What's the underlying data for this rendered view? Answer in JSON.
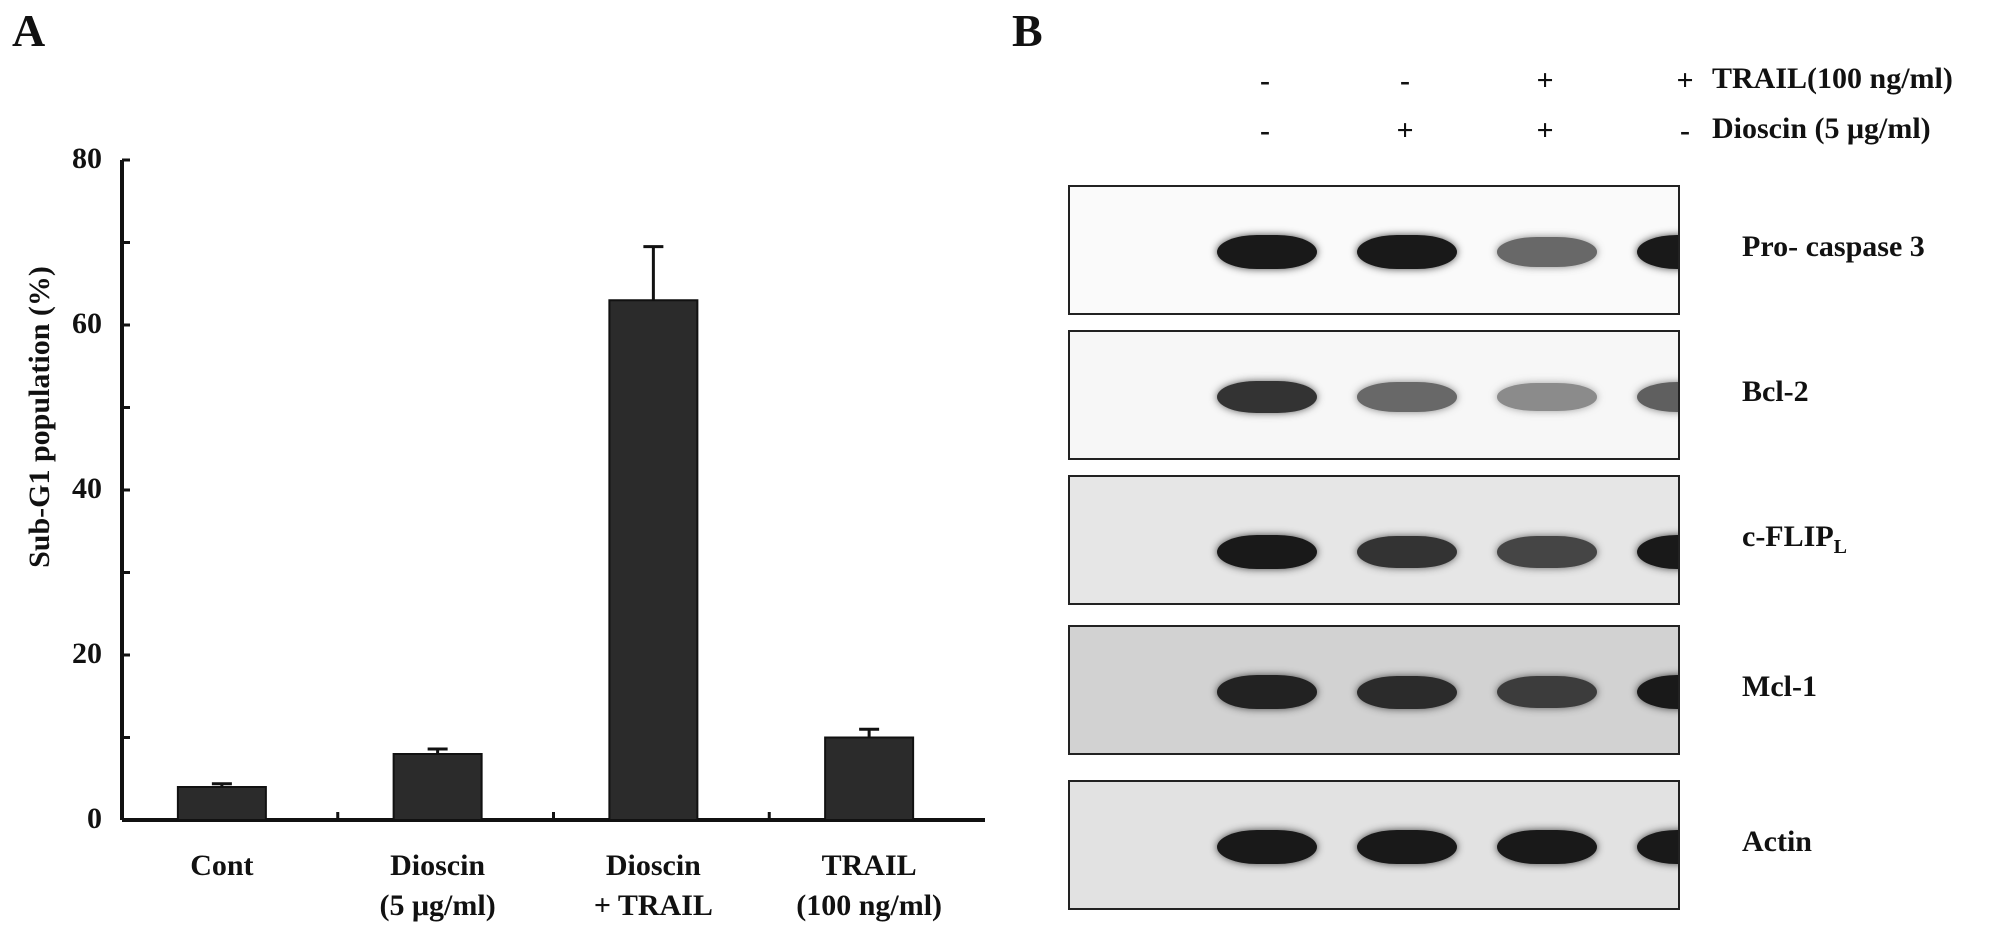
{
  "panels": {
    "a_letter": "A",
    "b_letter": "B"
  },
  "chart_data": {
    "type": "bar",
    "ylabel": "Sub-G1 population (%)",
    "xlabel": "",
    "ylim": [
      0,
      80
    ],
    "yticks": [
      0,
      20,
      40,
      60,
      80
    ],
    "categories": [
      {
        "line1": "Cont",
        "line2": ""
      },
      {
        "line1": "Dioscin",
        "line2": "(5 μg/ml)"
      },
      {
        "line1": "Dioscin",
        "line2": "+ TRAIL"
      },
      {
        "line1": "TRAIL",
        "line2": "(100 ng/ml)"
      }
    ],
    "values": [
      4,
      8,
      63,
      10
    ],
    "errors": [
      0.4,
      0.6,
      6.5,
      1.0
    ],
    "bar_color": "#2b2b2b"
  },
  "blot": {
    "conditions": [
      {
        "label": "TRAIL(100 ng/ml)",
        "signs": [
          "-",
          "-",
          "+",
          "+"
        ]
      },
      {
        "label": "Dioscin (5 μg/ml)",
        "signs": [
          "-",
          "+",
          "+",
          "-"
        ]
      }
    ],
    "proteins": [
      {
        "label": "Pro- caspase 3",
        "sub": "",
        "bg": "#fafafa",
        "intensity": [
          1.0,
          1.0,
          0.55,
          1.0
        ]
      },
      {
        "label": "Bcl-2",
        "sub": "",
        "bg": "#f7f7f7",
        "intensity": [
          0.85,
          0.55,
          0.35,
          0.6
        ]
      },
      {
        "label": "c-FLIP",
        "sub": "L",
        "bg": "#e6e6e6",
        "intensity": [
          1.0,
          0.85,
          0.75,
          1.0
        ]
      },
      {
        "label": "Mcl-1",
        "sub": "",
        "bg": "#d2d2d2",
        "intensity": [
          0.95,
          0.9,
          0.8,
          1.0
        ]
      },
      {
        "label": "Actin",
        "sub": "",
        "bg": "#e2e2e2",
        "intensity": [
          1.0,
          1.0,
          1.0,
          1.0
        ]
      }
    ]
  }
}
